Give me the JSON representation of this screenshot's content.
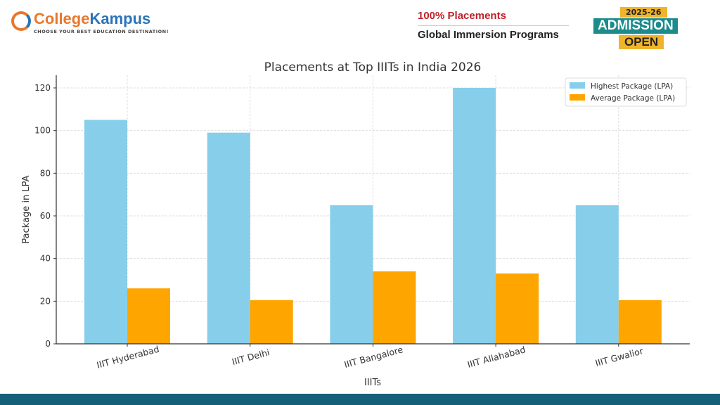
{
  "header": {
    "logo": {
      "part1": "College",
      "part2": "Kampus",
      "tagline": "CHOOSE YOUR BEST EDUCATION DESTINATION!"
    },
    "promo": {
      "line1": "100% Placements",
      "line2": "Global Immersion Programs"
    },
    "badge": {
      "year": "2025-26",
      "title": "ADMISSION",
      "subtitle": "OPEN"
    }
  },
  "chart_data": {
    "type": "bar",
    "title": "Placements at Top IIITs in India 2026",
    "xlabel": "IIITs",
    "ylabel": "Package in LPA",
    "ylim": [
      0,
      126
    ],
    "yticks": [
      0,
      20,
      40,
      60,
      80,
      100,
      120
    ],
    "grid": true,
    "legend_position": "top-right",
    "categories": [
      "IIIT Hyderabad",
      "IIIT Delhi",
      "IIIT Bangalore",
      "IIIT Allahabad",
      "IIIT Gwalior"
    ],
    "series": [
      {
        "name": "Highest Package (LPA)",
        "color": "#87ceeb",
        "values": [
          105,
          99,
          65,
          120,
          65
        ]
      },
      {
        "name": "Average Package (LPA)",
        "color": "#ffa500",
        "values": [
          26,
          20.5,
          34,
          33,
          20.5
        ]
      }
    ]
  }
}
